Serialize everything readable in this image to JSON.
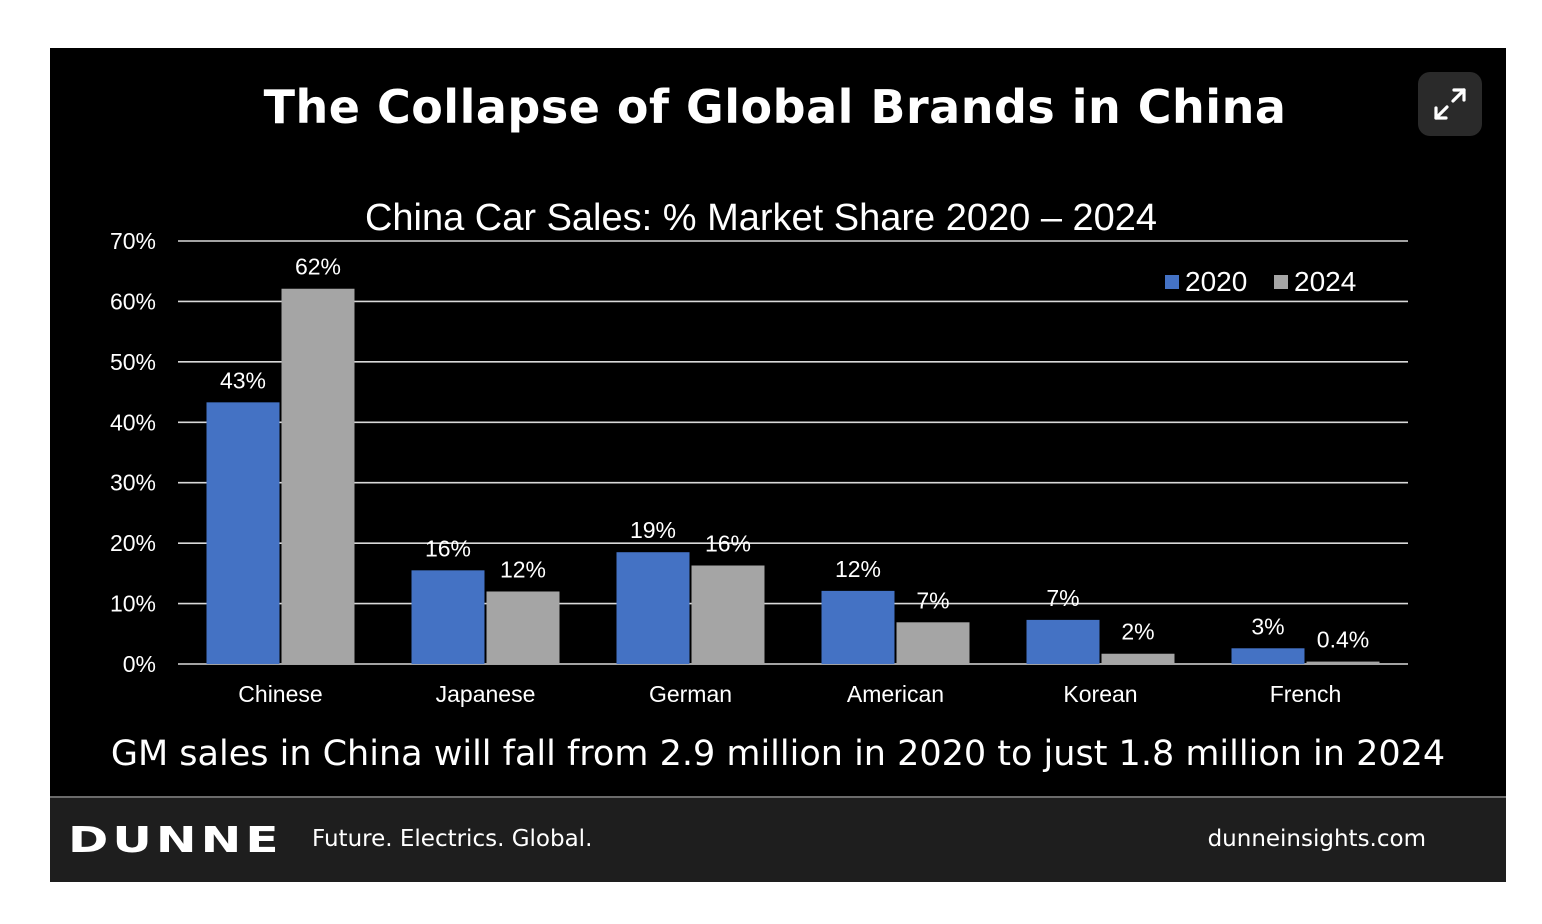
{
  "header": {
    "title": "The Collapse of Global Brands in China",
    "expand_icon": "expand-icon"
  },
  "chart_data": {
    "type": "bar",
    "title": "China Car Sales: % Market Share 2020 – 2024",
    "categories": [
      "Chinese",
      "Japanese",
      "German",
      "American",
      "Korean",
      "French"
    ],
    "series": [
      {
        "name": "2020",
        "color": "#4472c4",
        "values": [
          43.3,
          15.5,
          18.5,
          12.1,
          7.3,
          2.6
        ],
        "labels": [
          "43%",
          "16%",
          "19%",
          "12%",
          "7%",
          "3%"
        ]
      },
      {
        "name": "2024",
        "color": "#a5a5a5",
        "values": [
          62.1,
          12.0,
          16.3,
          6.9,
          1.7,
          0.4
        ],
        "labels": [
          "62%",
          "12%",
          "16%",
          "7%",
          "2%",
          "0.4%"
        ]
      }
    ],
    "ylim": [
      0,
      70
    ],
    "yticks": [
      0,
      10,
      20,
      30,
      40,
      50,
      60,
      70
    ],
    "ytick_labels": [
      "0%",
      "10%",
      "20%",
      "30%",
      "40%",
      "50%",
      "60%",
      "70%"
    ],
    "xlabel": "",
    "ylabel": "",
    "grid": true,
    "legend_position": "top-right"
  },
  "caption": "GM sales in China will fall from 2.9 million in 2020 to just 1.8 million in 2024",
  "footer": {
    "logo": "DUNNE",
    "tagline": "Future. Electrics. Global.",
    "website": "dunneinsights.com"
  }
}
